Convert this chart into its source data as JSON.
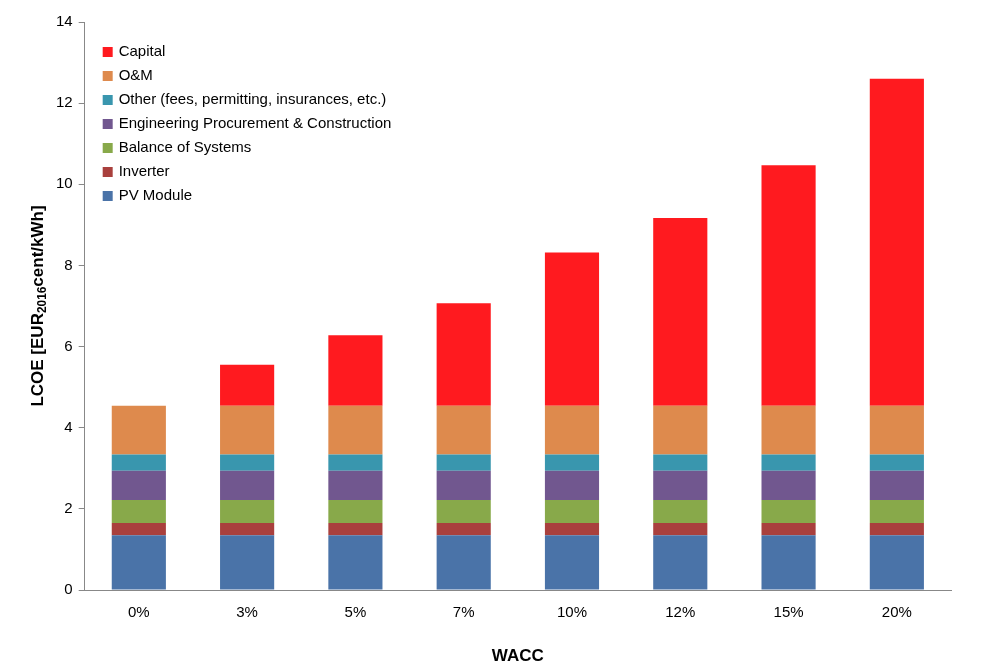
{
  "chart_data": {
    "type": "bar",
    "stacked": true,
    "xlabel": "WACC",
    "ylabel": "LCOE [EUR$_{2016}$cent/kWh]",
    "categories": [
      "0%",
      "3%",
      "5%",
      "7%",
      "10%",
      "12%",
      "15%",
      "20%"
    ],
    "series": [
      {
        "name": "PV Module",
        "color": "#4a73a8",
        "values": [
          1.35,
          1.35,
          1.35,
          1.35,
          1.35,
          1.35,
          1.35,
          1.35
        ]
      },
      {
        "name": "Inverter",
        "color": "#a9403d",
        "values": [
          0.3,
          0.3,
          0.3,
          0.3,
          0.3,
          0.3,
          0.3,
          0.3
        ]
      },
      {
        "name": "Balance of Systems",
        "color": "#88a94a",
        "values": [
          0.57,
          0.57,
          0.57,
          0.57,
          0.57,
          0.57,
          0.57,
          0.57
        ]
      },
      {
        "name": "Engineering Procurement & Construction",
        "color": "#71578f",
        "values": [
          0.72,
          0.72,
          0.72,
          0.72,
          0.72,
          0.72,
          0.72,
          0.72
        ]
      },
      {
        "name": "Other (fees, permitting, insurances, etc.)",
        "color": "#3996ae",
        "values": [
          0.4,
          0.4,
          0.4,
          0.4,
          0.4,
          0.4,
          0.4,
          0.4
        ]
      },
      {
        "name": "O&M",
        "color": "#de8a4d",
        "values": [
          1.2,
          1.2,
          1.2,
          1.2,
          1.2,
          1.2,
          1.2,
          1.2
        ]
      },
      {
        "name": "Capital",
        "color": "#ff1a1f",
        "values": [
          0,
          1.01,
          1.74,
          2.53,
          3.78,
          4.63,
          5.93,
          8.06
        ]
      }
    ],
    "ylim": [
      0,
      14
    ],
    "yticks": [
      0,
      2,
      4,
      6,
      8,
      10,
      12,
      14
    ],
    "grid": false,
    "legend": "top left"
  }
}
